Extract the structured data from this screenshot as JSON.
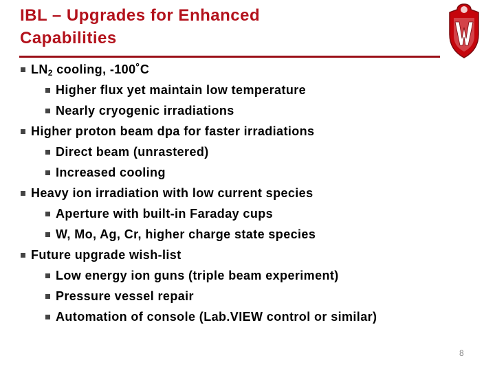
{
  "header": {
    "title_lines": [
      "IBL – Upgrades for Enhanced",
      "Capabilities"
    ]
  },
  "bullets": [
    {
      "label_parts": [
        "LN",
        "2",
        " cooling, -100˚C"
      ],
      "items": [
        "Higher flux yet maintain low temperature",
        "Nearly cryogenic irradiations"
      ]
    },
    {
      "label_parts": [
        "Higher proton beam dpa for faster irradiations"
      ],
      "items": [
        "Direct beam (unrastered)",
        "Increased cooling"
      ]
    },
    {
      "label_parts": [
        "Heavy ion irradiation with low current species"
      ],
      "items": [
        "Aperture with built-in Faraday cups",
        "W, Mo, Ag, Cr, higher charge state species"
      ]
    },
    {
      "label_parts": [
        "Future upgrade wish-list"
      ],
      "items": [
        "Low energy ion guns (triple beam experiment)",
        "Pressure vessel repair",
        "Automation of console (Lab.VIEW control or similar)"
      ]
    }
  ],
  "footer": {
    "page_number": "8"
  }
}
